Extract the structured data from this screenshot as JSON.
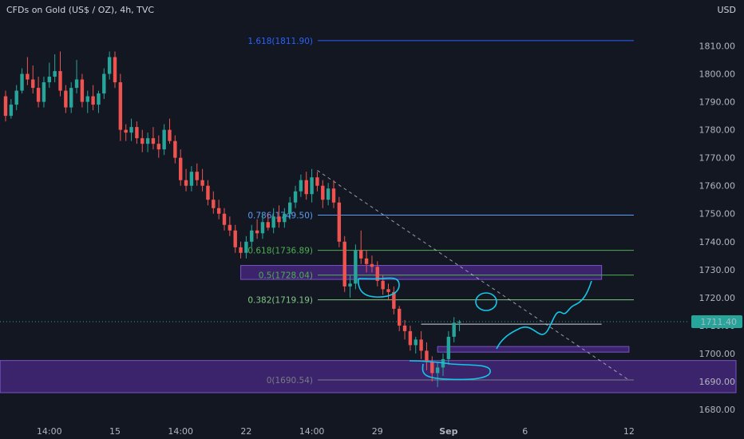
{
  "header": {
    "title": "CFDs on Gold (US$ / OZ), 4h, TVC",
    "currency": "USD"
  },
  "colors": {
    "background": "#131722",
    "bull": "#26a69a",
    "bear": "#ef5350",
    "zone_fill": "#4a2a86",
    "zone_stroke": "#7b52c8",
    "trend_line": "#d1d4dc",
    "price_line": "#26a69a",
    "fib_blue": "#2962ff",
    "drawing": "#13c6e8"
  },
  "price_tag": {
    "value": "1711.40",
    "price": 1711.4
  },
  "chart_data": {
    "type": "candlestick",
    "title": "CFDs on Gold (US$ / OZ), 4h, TVC",
    "y_axis": {
      "range": [
        1676,
        1819
      ],
      "ticks": [
        "1680.00",
        "1690.00",
        "1700.00",
        "1710.00",
        "1720.00",
        "1730.00",
        "1740.00",
        "1750.00",
        "1760.00",
        "1770.00",
        "1780.00",
        "1790.00",
        "1800.00",
        "1810.00"
      ]
    },
    "x_axis": {
      "ticks": [
        {
          "label": "14:00",
          "bar": 8
        },
        {
          "label": "15",
          "bar": 20
        },
        {
          "label": "14:00",
          "bar": 32
        },
        {
          "label": "22",
          "bar": 44
        },
        {
          "label": "14:00",
          "bar": 56
        },
        {
          "label": "29",
          "bar": 68
        },
        {
          "label": "Sep",
          "bar": 81,
          "bold": true
        },
        {
          "label": "6",
          "bar": 95
        },
        {
          "label": "12",
          "bar": 114
        }
      ]
    },
    "fibonacci": [
      {
        "level": "1.618",
        "price": 1811.9,
        "label": "1.618(1811.90)",
        "color": "#2962ff"
      },
      {
        "level": "0.786",
        "price": 1749.5,
        "label": "0.786(1749.50)",
        "color": "#5b9cf6"
      },
      {
        "level": "0.618",
        "price": 1736.89,
        "label": "0.618(1736.89)",
        "color": "#4caf50"
      },
      {
        "level": "0.5",
        "price": 1728.04,
        "label": "0.5(1728.04)",
        "color": "#4caf50"
      },
      {
        "level": "0.382",
        "price": 1719.19,
        "label": "0.382(1719.19)",
        "color": "#81c784"
      },
      {
        "level": "0",
        "price": 1690.54,
        "label": "0(1690.54)",
        "color": "#787b86"
      }
    ],
    "zones": [
      {
        "name": "upper-zone",
        "top": 1731.5,
        "bottom": 1726.5,
        "from_bar": 43,
        "to_bar": 109
      },
      {
        "name": "lower-zone",
        "top": 1697.5,
        "bottom": 1686.0,
        "from_bar": -1,
        "to_bar": 150
      },
      {
        "name": "small-zone",
        "top": 1702.5,
        "bottom": 1700.5,
        "from_bar": 79,
        "to_bar": 114
      }
    ],
    "horizontal_lines": [
      {
        "price": 1710.5,
        "from_bar": 76,
        "to_bar": 109
      }
    ],
    "trend_line": {
      "from": {
        "bar": 57,
        "price": 1765.5
      },
      "to": {
        "bar": 114,
        "price": 1690.5
      }
    },
    "ohlc": [
      [
        1792,
        1794,
        1783,
        1785
      ],
      [
        1785,
        1791,
        1784,
        1789
      ],
      [
        1789,
        1796,
        1787,
        1794
      ],
      [
        1794,
        1802,
        1793,
        1800
      ],
      [
        1800,
        1806,
        1796,
        1798
      ],
      [
        1798,
        1803,
        1793,
        1795
      ],
      [
        1795,
        1799,
        1788,
        1790
      ],
      [
        1790,
        1799,
        1788,
        1797
      ],
      [
        1797,
        1804,
        1795,
        1799
      ],
      [
        1799,
        1807,
        1797,
        1801
      ],
      [
        1801,
        1808,
        1792,
        1794
      ],
      [
        1794,
        1796,
        1786,
        1788
      ],
      [
        1788,
        1797,
        1786,
        1795
      ],
      [
        1795,
        1805,
        1793,
        1798
      ],
      [
        1798,
        1800,
        1788,
        1790
      ],
      [
        1790,
        1794,
        1786,
        1792
      ],
      [
        1792,
        1796,
        1787,
        1789
      ],
      [
        1789,
        1794,
        1786,
        1793
      ],
      [
        1793,
        1802,
        1791,
        1800
      ],
      [
        1800,
        1808,
        1798,
        1806
      ],
      [
        1806,
        1808,
        1795,
        1797
      ],
      [
        1797,
        1800,
        1776,
        1780
      ],
      [
        1780,
        1782,
        1776,
        1779
      ],
      [
        1779,
        1784,
        1776,
        1781
      ],
      [
        1781,
        1783,
        1775,
        1777
      ],
      [
        1777,
        1780,
        1772,
        1775
      ],
      [
        1775,
        1779,
        1772,
        1777
      ],
      [
        1777,
        1781,
        1773,
        1775
      ],
      [
        1775,
        1778,
        1770,
        1773
      ],
      [
        1773,
        1782,
        1771,
        1780
      ],
      [
        1780,
        1784,
        1775,
        1776
      ],
      [
        1776,
        1778,
        1768,
        1770
      ],
      [
        1770,
        1773,
        1760,
        1762
      ],
      [
        1762,
        1766,
        1758,
        1760
      ],
      [
        1760,
        1767,
        1758,
        1765
      ],
      [
        1765,
        1768,
        1760,
        1762
      ],
      [
        1762,
        1766,
        1758,
        1760
      ],
      [
        1760,
        1762,
        1753,
        1755
      ],
      [
        1755,
        1758,
        1750,
        1752
      ],
      [
        1752,
        1755,
        1748,
        1750
      ],
      [
        1750,
        1752,
        1744,
        1746
      ],
      [
        1746,
        1749,
        1742,
        1744
      ],
      [
        1744,
        1746,
        1736,
        1738
      ],
      [
        1738,
        1740,
        1734,
        1736
      ],
      [
        1736,
        1742,
        1734,
        1740
      ],
      [
        1740,
        1746,
        1738,
        1744
      ],
      [
        1744,
        1748,
        1741,
        1743
      ],
      [
        1743,
        1750,
        1741,
        1747
      ],
      [
        1747,
        1750,
        1744,
        1745
      ],
      [
        1745,
        1752,
        1743,
        1749
      ],
      [
        1749,
        1753,
        1745,
        1747
      ],
      [
        1747,
        1752,
        1745,
        1750
      ],
      [
        1750,
        1756,
        1748,
        1754
      ],
      [
        1754,
        1760,
        1752,
        1758
      ],
      [
        1758,
        1764,
        1756,
        1762
      ],
      [
        1762,
        1765,
        1755,
        1757
      ],
      [
        1757,
        1766,
        1754,
        1763
      ],
      [
        1763,
        1765,
        1758,
        1760
      ],
      [
        1760,
        1762,
        1752,
        1755
      ],
      [
        1755,
        1761,
        1753,
        1759
      ],
      [
        1759,
        1762,
        1752,
        1754
      ],
      [
        1754,
        1756,
        1738,
        1740
      ],
      [
        1740,
        1742,
        1722,
        1724
      ],
      [
        1724,
        1728,
        1720,
        1725
      ],
      [
        1725,
        1739,
        1723,
        1737
      ],
      [
        1737,
        1744,
        1732,
        1734
      ],
      [
        1734,
        1737,
        1729,
        1732
      ],
      [
        1732,
        1735,
        1729,
        1731
      ],
      [
        1731,
        1733,
        1724,
        1726
      ],
      [
        1726,
        1728,
        1721,
        1723
      ],
      [
        1723,
        1725,
        1719,
        1722
      ],
      [
        1722,
        1724,
        1714,
        1716
      ],
      [
        1716,
        1717,
        1708,
        1710
      ],
      [
        1710,
        1712,
        1705,
        1708
      ],
      [
        1708,
        1710,
        1701,
        1703
      ],
      [
        1703,
        1706,
        1700,
        1705
      ],
      [
        1705,
        1708,
        1698,
        1701
      ],
      [
        1701,
        1704,
        1694,
        1697
      ],
      [
        1697,
        1699,
        1690,
        1693
      ],
      [
        1693,
        1697,
        1688,
        1695
      ],
      [
        1695,
        1700,
        1692,
        1698
      ],
      [
        1698,
        1708,
        1696,
        1706
      ],
      [
        1706,
        1713,
        1704,
        1711
      ],
      [
        1711,
        1712,
        1708,
        1711.4
      ]
    ]
  }
}
